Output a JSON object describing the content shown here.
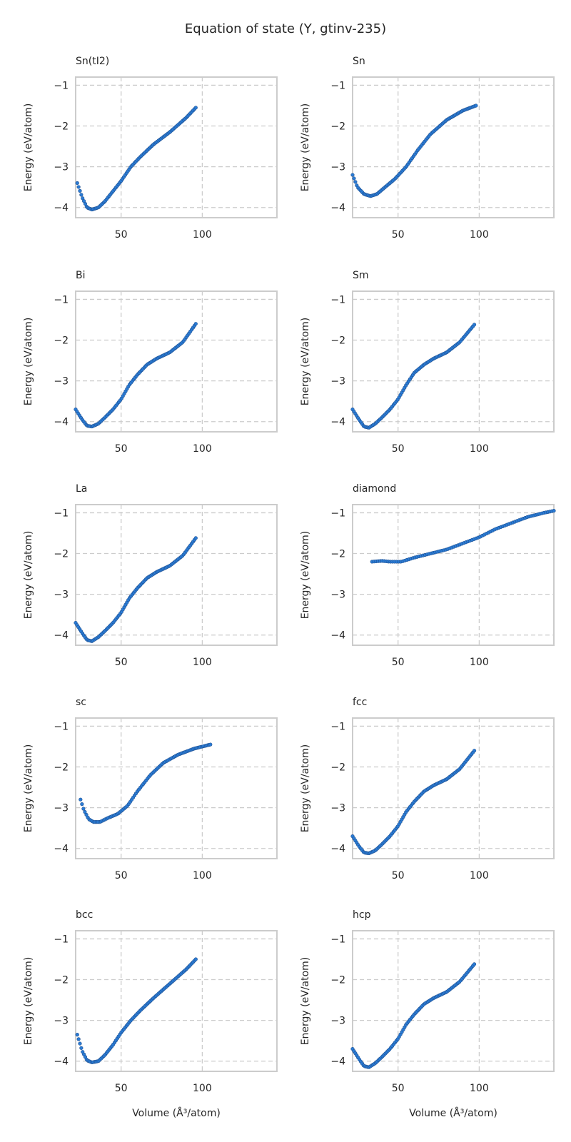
{
  "chart_data": {
    "type": "scatter",
    "title": "Equation of state (Y, gtinv-235)",
    "xlabel": "Volume (Å³/atom)",
    "ylabel": "Energy (eV/atom)",
    "xlim": [
      22,
      146
    ],
    "ylim": [
      -4.25,
      -0.8
    ],
    "xticks": [
      50,
      100
    ],
    "yticks": [
      -1,
      -2,
      -3,
      -4
    ],
    "grid": true,
    "marker_color": "#2a7bd4",
    "panels": [
      {
        "title": "Sn(tI2)",
        "v_start": 23,
        "v_end": 96,
        "n": 90,
        "keys": [
          [
            23,
            -3.4
          ],
          [
            26,
            -3.75
          ],
          [
            29,
            -4.0
          ],
          [
            32,
            -4.05
          ],
          [
            36,
            -4.0
          ],
          [
            40,
            -3.85
          ],
          [
            45,
            -3.6
          ],
          [
            50,
            -3.35
          ],
          [
            56,
            -3.0
          ],
          [
            62,
            -2.75
          ],
          [
            70,
            -2.45
          ],
          [
            80,
            -2.15
          ],
          [
            90,
            -1.8
          ],
          [
            96,
            -1.55
          ]
        ]
      },
      {
        "title": "Sn",
        "v_start": 22,
        "v_end": 98,
        "n": 90,
        "keys": [
          [
            22,
            -3.2
          ],
          [
            25,
            -3.5
          ],
          [
            29,
            -3.67
          ],
          [
            33,
            -3.72
          ],
          [
            37,
            -3.67
          ],
          [
            42,
            -3.5
          ],
          [
            48,
            -3.3
          ],
          [
            55,
            -3.0
          ],
          [
            62,
            -2.6
          ],
          [
            70,
            -2.2
          ],
          [
            80,
            -1.85
          ],
          [
            90,
            -1.62
          ],
          [
            98,
            -1.5
          ]
        ]
      },
      {
        "title": "Bi",
        "v_start": 22,
        "v_end": 96,
        "n": 90,
        "keys": [
          [
            22,
            -3.7
          ],
          [
            26,
            -3.95
          ],
          [
            29,
            -4.1
          ],
          [
            32,
            -4.12
          ],
          [
            36,
            -4.05
          ],
          [
            40,
            -3.9
          ],
          [
            45,
            -3.7
          ],
          [
            50,
            -3.45
          ],
          [
            55,
            -3.1
          ],
          [
            60,
            -2.85
          ],
          [
            66,
            -2.6
          ],
          [
            72,
            -2.45
          ],
          [
            80,
            -2.3
          ],
          [
            88,
            -2.05
          ],
          [
            96,
            -1.6
          ]
        ]
      },
      {
        "title": "Sm",
        "v_start": 22,
        "v_end": 97,
        "n": 90,
        "keys": [
          [
            22,
            -3.7
          ],
          [
            26,
            -3.95
          ],
          [
            29,
            -4.12
          ],
          [
            32,
            -4.15
          ],
          [
            36,
            -4.05
          ],
          [
            40,
            -3.9
          ],
          [
            45,
            -3.7
          ],
          [
            50,
            -3.45
          ],
          [
            55,
            -3.1
          ],
          [
            60,
            -2.8
          ],
          [
            66,
            -2.6
          ],
          [
            72,
            -2.45
          ],
          [
            80,
            -2.3
          ],
          [
            88,
            -2.05
          ],
          [
            97,
            -1.62
          ]
        ]
      },
      {
        "title": "La",
        "v_start": 22,
        "v_end": 96,
        "n": 90,
        "keys": [
          [
            22,
            -3.7
          ],
          [
            26,
            -3.95
          ],
          [
            29,
            -4.12
          ],
          [
            32,
            -4.15
          ],
          [
            36,
            -4.05
          ],
          [
            40,
            -3.9
          ],
          [
            45,
            -3.7
          ],
          [
            50,
            -3.45
          ],
          [
            55,
            -3.1
          ],
          [
            60,
            -2.85
          ],
          [
            66,
            -2.6
          ],
          [
            72,
            -2.45
          ],
          [
            80,
            -2.3
          ],
          [
            88,
            -2.05
          ],
          [
            96,
            -1.62
          ]
        ]
      },
      {
        "title": "diamond",
        "v_start": 34,
        "v_end": 146,
        "n": 90,
        "keys": [
          [
            34,
            -2.2
          ],
          [
            40,
            -2.18
          ],
          [
            45,
            -2.2
          ],
          [
            52,
            -2.2
          ],
          [
            60,
            -2.1
          ],
          [
            70,
            -2.0
          ],
          [
            80,
            -1.9
          ],
          [
            90,
            -1.75
          ],
          [
            100,
            -1.6
          ],
          [
            110,
            -1.4
          ],
          [
            120,
            -1.25
          ],
          [
            130,
            -1.1
          ],
          [
            140,
            -1.0
          ],
          [
            146,
            -0.95
          ]
        ]
      },
      {
        "title": "sc",
        "v_start": 25,
        "v_end": 105,
        "n": 90,
        "keys": [
          [
            25,
            -2.8
          ],
          [
            27,
            -3.05
          ],
          [
            30,
            -3.28
          ],
          [
            33,
            -3.35
          ],
          [
            37,
            -3.35
          ],
          [
            42,
            -3.25
          ],
          [
            48,
            -3.15
          ],
          [
            54,
            -2.95
          ],
          [
            60,
            -2.6
          ],
          [
            68,
            -2.2
          ],
          [
            76,
            -1.9
          ],
          [
            85,
            -1.7
          ],
          [
            95,
            -1.55
          ],
          [
            105,
            -1.45
          ]
        ]
      },
      {
        "title": "fcc",
        "v_start": 22,
        "v_end": 97,
        "n": 90,
        "keys": [
          [
            22,
            -3.7
          ],
          [
            26,
            -3.95
          ],
          [
            29,
            -4.1
          ],
          [
            32,
            -4.12
          ],
          [
            36,
            -4.05
          ],
          [
            40,
            -3.9
          ],
          [
            45,
            -3.7
          ],
          [
            50,
            -3.45
          ],
          [
            55,
            -3.1
          ],
          [
            60,
            -2.85
          ],
          [
            66,
            -2.6
          ],
          [
            72,
            -2.45
          ],
          [
            80,
            -2.3
          ],
          [
            88,
            -2.05
          ],
          [
            97,
            -1.6
          ]
        ]
      },
      {
        "title": "bcc",
        "v_start": 23,
        "v_end": 96,
        "n": 90,
        "keys": [
          [
            23,
            -3.35
          ],
          [
            26,
            -3.75
          ],
          [
            29,
            -3.98
          ],
          [
            32,
            -4.03
          ],
          [
            36,
            -4.0
          ],
          [
            40,
            -3.85
          ],
          [
            45,
            -3.6
          ],
          [
            50,
            -3.3
          ],
          [
            56,
            -3.0
          ],
          [
            62,
            -2.75
          ],
          [
            70,
            -2.45
          ],
          [
            80,
            -2.1
          ],
          [
            90,
            -1.75
          ],
          [
            96,
            -1.5
          ]
        ]
      },
      {
        "title": "hcp",
        "v_start": 22,
        "v_end": 97,
        "n": 90,
        "keys": [
          [
            22,
            -3.7
          ],
          [
            26,
            -3.95
          ],
          [
            29,
            -4.12
          ],
          [
            32,
            -4.15
          ],
          [
            36,
            -4.05
          ],
          [
            40,
            -3.9
          ],
          [
            45,
            -3.7
          ],
          [
            50,
            -3.45
          ],
          [
            55,
            -3.1
          ],
          [
            60,
            -2.85
          ],
          [
            66,
            -2.6
          ],
          [
            72,
            -2.45
          ],
          [
            80,
            -2.3
          ],
          [
            88,
            -2.05
          ],
          [
            97,
            -1.62
          ]
        ]
      }
    ]
  }
}
